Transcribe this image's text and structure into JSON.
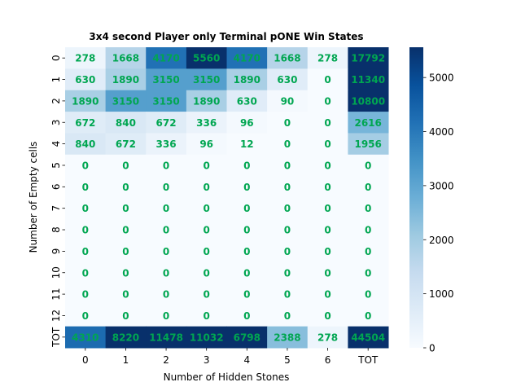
{
  "chart_data": {
    "type": "heatmap",
    "title": "3x4 second Player only Terminal pONE Win States",
    "xlabel": "Number of Hidden Stones",
    "ylabel": "Number of Empty cells",
    "x_categories": [
      "0",
      "1",
      "2",
      "3",
      "4",
      "5",
      "6",
      "TOT"
    ],
    "y_categories": [
      "0",
      "1",
      "2",
      "3",
      "4",
      "5",
      "6",
      "7",
      "8",
      "9",
      "10",
      "11",
      "12",
      "TOT"
    ],
    "values": [
      [
        278,
        1668,
        4170,
        5560,
        4170,
        1668,
        278,
        17792
      ],
      [
        630,
        1890,
        3150,
        3150,
        1890,
        630,
        0,
        11340
      ],
      [
        1890,
        3150,
        3150,
        1890,
        630,
        90,
        0,
        10800
      ],
      [
        672,
        840,
        672,
        336,
        96,
        0,
        0,
        2616
      ],
      [
        840,
        672,
        336,
        96,
        12,
        0,
        0,
        1956
      ],
      [
        0,
        0,
        0,
        0,
        0,
        0,
        0,
        0
      ],
      [
        0,
        0,
        0,
        0,
        0,
        0,
        0,
        0
      ],
      [
        0,
        0,
        0,
        0,
        0,
        0,
        0,
        0
      ],
      [
        0,
        0,
        0,
        0,
        0,
        0,
        0,
        0
      ],
      [
        0,
        0,
        0,
        0,
        0,
        0,
        0,
        0
      ],
      [
        0,
        0,
        0,
        0,
        0,
        0,
        0,
        0
      ],
      [
        0,
        0,
        0,
        0,
        0,
        0,
        0,
        0
      ],
      [
        0,
        0,
        0,
        0,
        0,
        0,
        0,
        0
      ],
      [
        4310,
        8220,
        11478,
        11032,
        6798,
        2388,
        278,
        44504
      ]
    ],
    "colormap": "Blues",
    "color_range": [
      0,
      5560
    ],
    "colorbar_ticks": [
      0,
      1000,
      2000,
      3000,
      4000,
      5000
    ],
    "annotation_color": "#00a651",
    "grid": false
  }
}
